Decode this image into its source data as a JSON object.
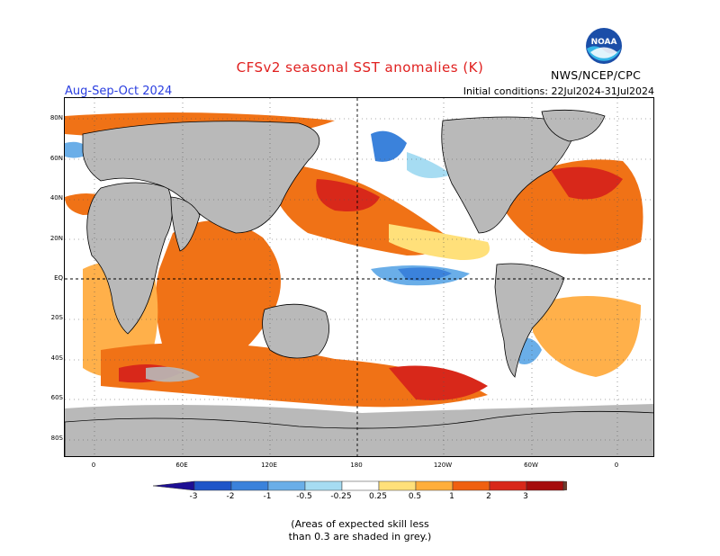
{
  "header": {
    "title": "CFSv2 seasonal SST anomalies (K)",
    "season": "Aug-Sep-Oct 2024",
    "initial_conditions": "Initial conditions: 22Jul2024-31Jul2024",
    "agency": "NWS/NCEP/CPC",
    "logo_text": "NOAA"
  },
  "map": {
    "lat_labels": [
      "80N",
      "60N",
      "40N",
      "20N",
      "EQ",
      "20S",
      "40S",
      "60S",
      "80S"
    ],
    "lon_labels": [
      "0",
      "60E",
      "120E",
      "180",
      "120W",
      "60W",
      "0"
    ],
    "colors": {
      "land": "#b9b9b9",
      "neutral_ocean": "#ffffff",
      "skill_shading": "#b9b9b9"
    }
  },
  "colorbar": {
    "labels": [
      "-3",
      "-2",
      "-1",
      "-0.5",
      "-0.25",
      "0.25",
      "0.5",
      "1",
      "2",
      "3"
    ],
    "colors": [
      "#1d0f94",
      "#1f55c8",
      "#3b82db",
      "#6aaee8",
      "#a6dcf2",
      "#ffffff",
      "#ffe07a",
      "#ffae3c",
      "#f06010",
      "#d8281a",
      "#a50d0d",
      "#6b3d2e"
    ]
  },
  "footnote": {
    "line1": "(Areas of expected skill less",
    "line2": "than 0.3 are shaded in grey.)"
  }
}
